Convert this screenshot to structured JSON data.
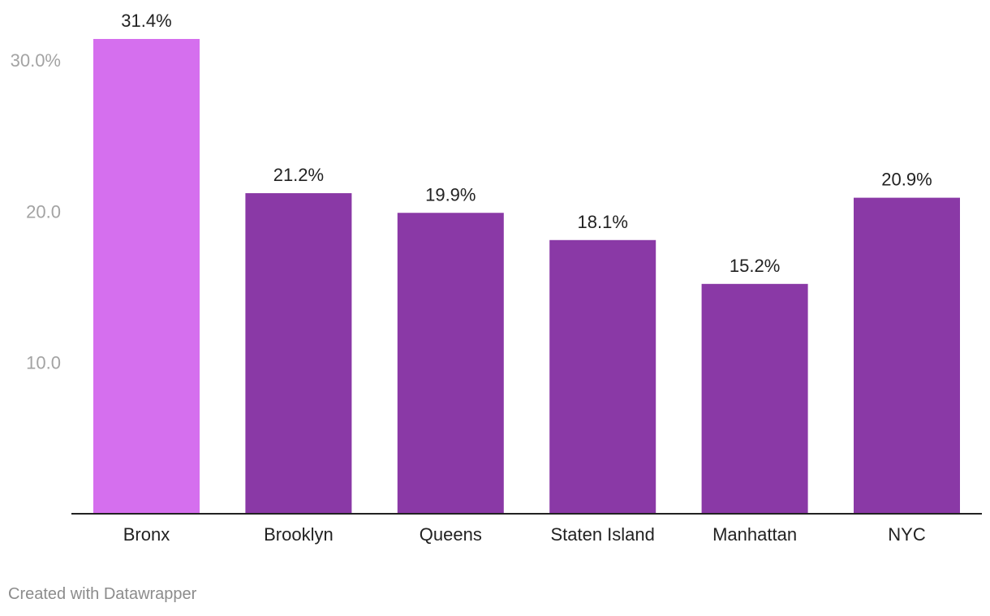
{
  "chart_data": {
    "type": "bar",
    "title": "",
    "xlabel": "",
    "ylabel": "",
    "categories": [
      "Bronx",
      "Brooklyn",
      "Queens",
      "Staten Island",
      "Manhattan",
      "NYC"
    ],
    "values": [
      31.4,
      21.2,
      19.9,
      18.1,
      15.2,
      20.9
    ],
    "value_labels": [
      "31.4%",
      "21.2%",
      "19.9%",
      "18.1%",
      "15.2%",
      "20.9%"
    ],
    "y_ticks": [
      10,
      20,
      30
    ],
    "y_tick_labels": [
      "10.0",
      "20.0",
      "30.0%"
    ],
    "ylim": [
      0,
      31.4
    ],
    "grid": false,
    "legend": "none",
    "colors": {
      "highlight": "#d56fee",
      "default": "#8a39a6",
      "highlight_category": "Bronx"
    }
  },
  "footer": {
    "credit": "Created with Datawrapper"
  }
}
